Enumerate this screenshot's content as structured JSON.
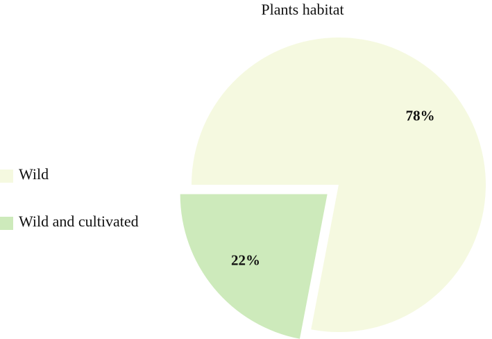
{
  "chart_data": {
    "type": "pie",
    "title": "Plants habitat",
    "categories": [
      "Wild",
      "Wild and cultivated"
    ],
    "values": [
      78,
      22
    ],
    "value_labels": [
      "78%",
      "22%"
    ],
    "colors": [
      "#f5f9e0",
      "#cdeabb"
    ],
    "explode": [
      0,
      0.1
    ],
    "legend": "left"
  }
}
